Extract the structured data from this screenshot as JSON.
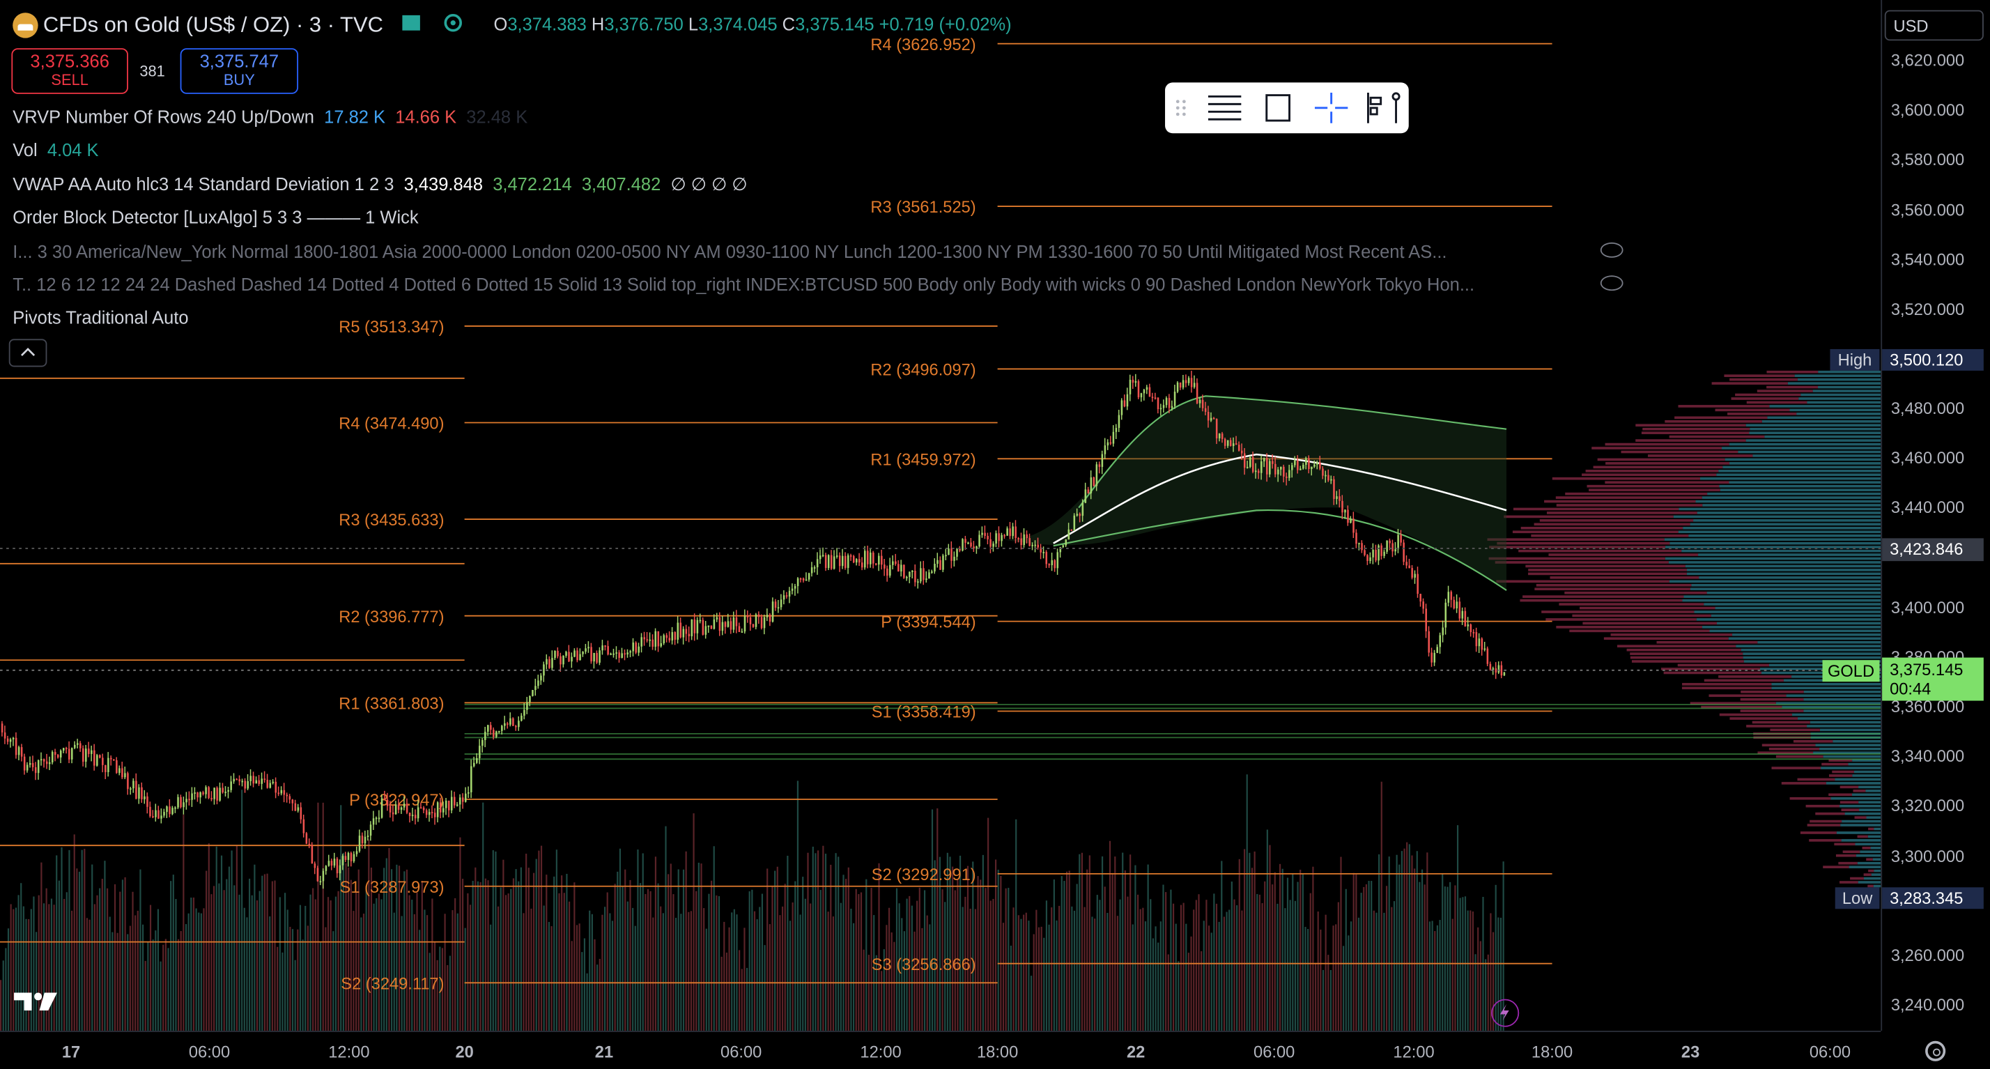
{
  "symbol": {
    "title": "CFDs on Gold (US$ / OZ) · 3 · TVC",
    "ohlc": {
      "o_label": "O",
      "o": "3,374.383",
      "h_label": "H",
      "h": "3,376.750",
      "l_label": "L",
      "l": "3,374.045",
      "c_label": "C",
      "c": "3,375.145",
      "change": "+0.719 (+0.02%)"
    }
  },
  "trade": {
    "sell_price": "3,375.366",
    "sell_label": "SELL",
    "spread": "381",
    "buy_price": "3,375.747",
    "buy_label": "BUY"
  },
  "indicators": [
    {
      "name": "VRVP Number Of Rows 240 Up/Down",
      "v1": "17.82 K",
      "v2": "14.66 K",
      "v3": "32.48 K"
    },
    {
      "name": "Vol",
      "v1": "4.04 K"
    },
    {
      "name": "VWAP AA Auto hlc3 14 Standard Deviation 1 2 3",
      "v1": "3,439.848",
      "v2": "3,472.214",
      "v3": "3,407.482",
      "v4": "∅ ∅ ∅ ∅"
    },
    {
      "name": "Order Block Detector [LuxAlgo] 5 3 3 ——— 1 Wick"
    },
    {
      "name": "I...  3 30 America/New_York Normal 1800-1801 Asia 2000-0000 London 0200-0500 NY AM 0930-1100 NY Lunch 1200-1300 NY PM 1330-1600 70 50 Until Mitigated Most Recent AS..."
    },
    {
      "name": "T..  12 6 12 12 24 24 Dashed Dashed 14 Dotted 4 Dotted 6 Dotted 15 Solid 13 Solid top_right INDEX:BTCUSD 500 Body only Body with wicks 0 90 Dashed London NewYork Tokyo Hon..."
    },
    {
      "name": "Pivots Traditional Auto"
    }
  ],
  "currency": "USD",
  "price_axis": [
    "3,620.000",
    "3,600.000",
    "3,580.000",
    "3,560.000",
    "3,540.000",
    "3,520.000",
    "3,480.000",
    "3,460.000",
    "3,440.000",
    "3,400.000",
    "3,380.000",
    "3,360.000",
    "3,340.000",
    "3,320.000",
    "3,300.000",
    "3,260.000",
    "3,240.000"
  ],
  "price_markers": {
    "high_label": "High",
    "high": "3,500.120",
    "current_level": "3,423.846",
    "gold_label": "GOLD",
    "gold_price": "3,375.145",
    "countdown": "00:44",
    "low_label": "Low",
    "low": "3,283.345"
  },
  "time_axis": [
    "17",
    "06:00",
    "12:00",
    "20",
    "21",
    "06:00",
    "12:00",
    "18:00",
    "22",
    "06:00",
    "12:00",
    "18:00",
    "23",
    "06:00"
  ],
  "pivots": {
    "left": [
      "R5 (3513.347)",
      "R4 (3474.490)",
      "R3 (3435.633)",
      "R2 (3396.777)",
      "R1 (3361.803)",
      "P (3322.947)",
      "S1 (3287.973)",
      "S2 (3249.117)"
    ],
    "right": [
      "R4 (3626.952)",
      "R3 (3561.525)",
      "R2 (3496.097)",
      "R1 (3459.972)",
      "P (3394.544)",
      "S1 (3358.419)",
      "S2 (3292.991)",
      "S3 (3256.866)"
    ]
  },
  "colors": {
    "up": "#26a69a",
    "down": "#ef5350",
    "pivot": "#e07a2c",
    "buy": "#2962ff",
    "sell": "#f23645",
    "gold": "#7ee06a"
  },
  "icons": {
    "logo": "tradingview-logo-icon",
    "collapse": "chevron-up-icon",
    "settings": "gear-icon",
    "bolt": "lightning-icon"
  }
}
